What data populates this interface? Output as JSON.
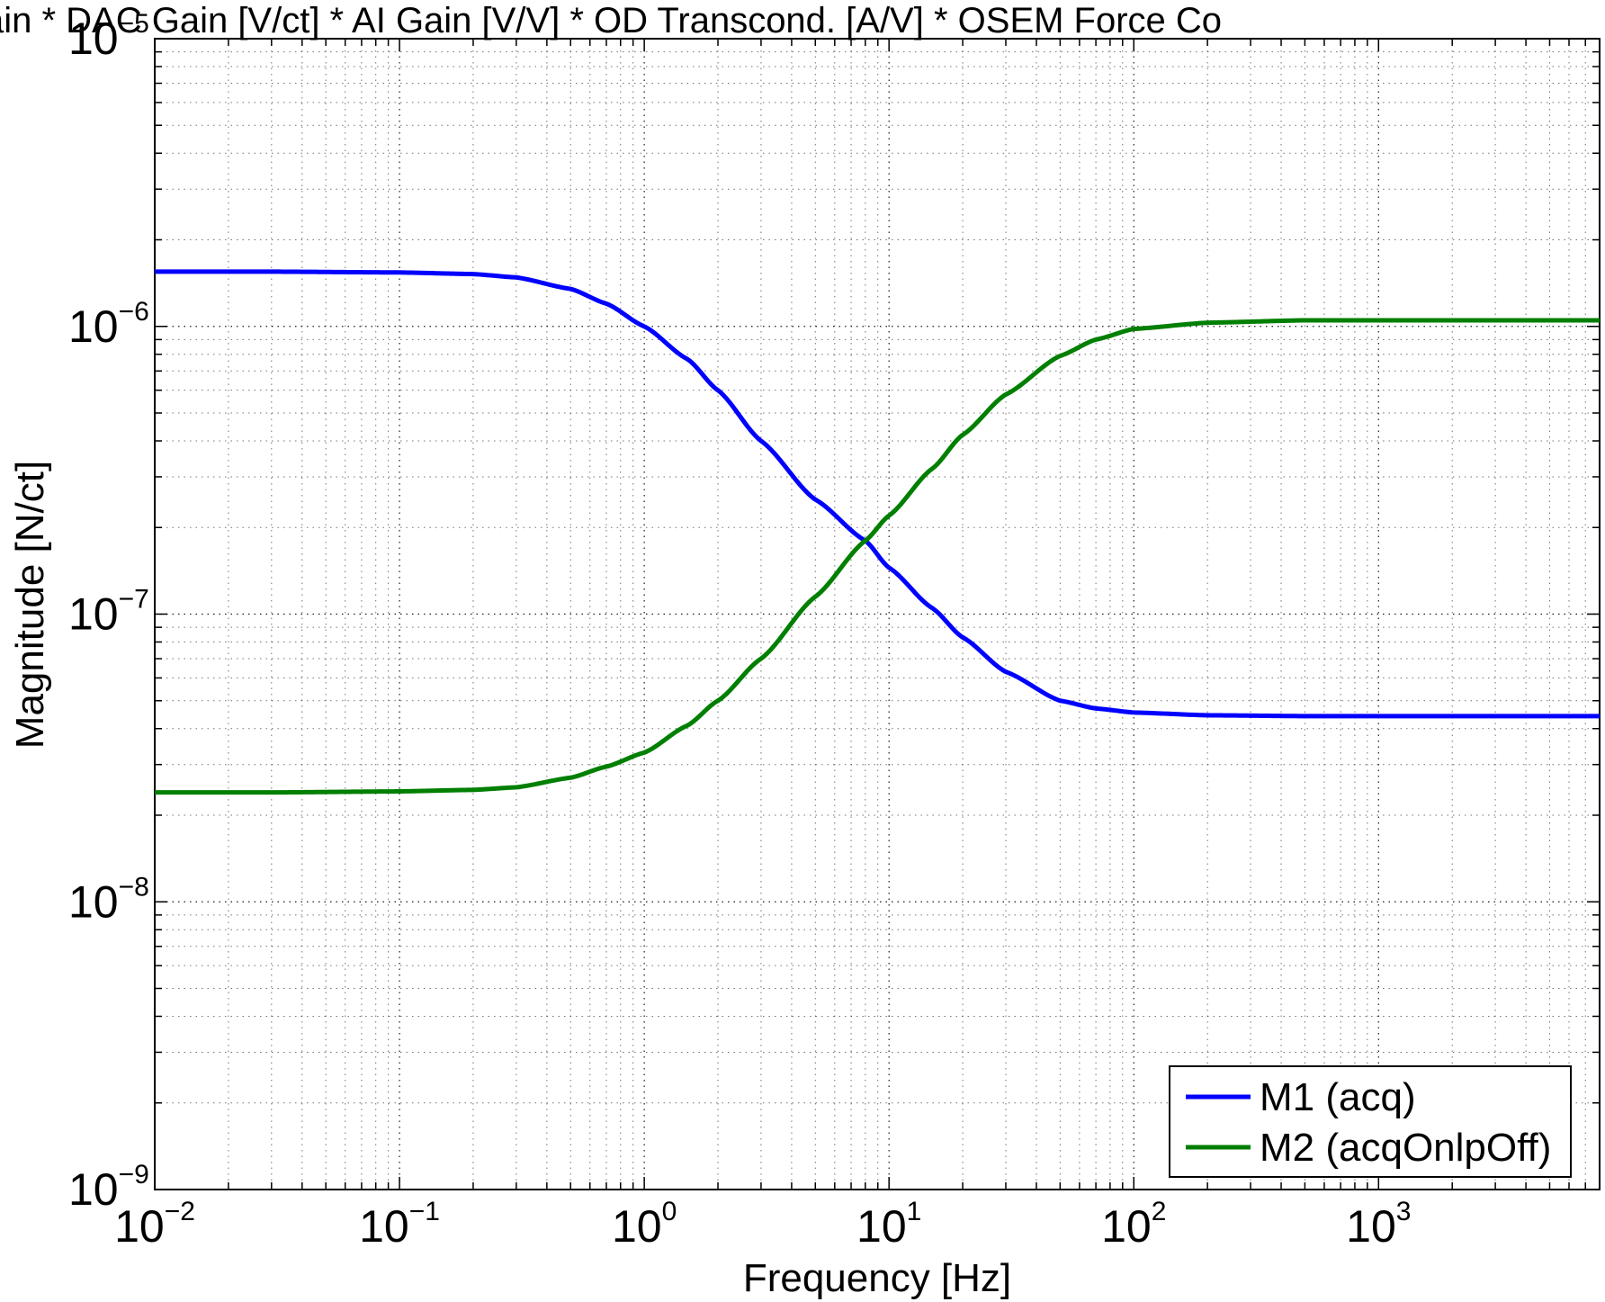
{
  "chart_data": {
    "type": "line",
    "title": "DC Gain * DAC Gain [V/ct] * AI Gain [V/V] * OD Transcond. [A/V] * OSEM Force Co",
    "xlabel": "Frequency [Hz]",
    "ylabel": "Magnitude [N/ct]",
    "x_scale": "log",
    "y_scale": "log",
    "xlim": [
      0.01,
      8000
    ],
    "ylim": [
      1e-09,
      1e-05
    ],
    "grid": true,
    "legend_position": "bottom-right",
    "x_ticks": [
      {
        "base": "10",
        "exp": "−2",
        "value": 0.01
      },
      {
        "base": "10",
        "exp": "−1",
        "value": 0.1
      },
      {
        "base": "10",
        "exp": "0",
        "value": 1
      },
      {
        "base": "10",
        "exp": "1",
        "value": 10
      },
      {
        "base": "10",
        "exp": "2",
        "value": 100
      },
      {
        "base": "10",
        "exp": "3",
        "value": 1000
      }
    ],
    "y_ticks": [
      {
        "base": "10",
        "exp": "−9",
        "value": 1e-09
      },
      {
        "base": "10",
        "exp": "−8",
        "value": 1e-08
      },
      {
        "base": "10",
        "exp": "−7",
        "value": 1e-07
      },
      {
        "base": "10",
        "exp": "−6",
        "value": 1e-06
      },
      {
        "base": "10",
        "exp": "−5",
        "value": 1e-05
      }
    ],
    "series": [
      {
        "name": "M1 (acq)",
        "color": "#0000ff",
        "x": [
          0.01,
          0.03,
          0.1,
          0.2,
          0.3,
          0.5,
          0.7,
          1,
          1.5,
          2,
          3,
          5,
          8,
          10,
          15,
          20,
          30,
          50,
          70,
          100,
          200,
          500,
          1000,
          8000
        ],
        "y": [
          1.55e-06,
          1.55e-06,
          1.54e-06,
          1.52e-06,
          1.48e-06,
          1.35e-06,
          1.2e-06,
          1e-06,
          7.7e-07,
          6e-07,
          4e-07,
          2.5e-07,
          1.8e-07,
          1.45e-07,
          1.05e-07,
          8.3e-08,
          6.3e-08,
          5e-08,
          4.7e-08,
          4.55e-08,
          4.45e-08,
          4.42e-08,
          4.42e-08,
          4.42e-08
        ]
      },
      {
        "name": "M2 (acqOnlpOff)",
        "color": "#007f00",
        "x": [
          0.01,
          0.03,
          0.1,
          0.2,
          0.3,
          0.5,
          0.7,
          1,
          1.5,
          2,
          3,
          5,
          8,
          10,
          15,
          20,
          30,
          50,
          70,
          100,
          200,
          500,
          1000,
          8000
        ],
        "y": [
          2.4e-08,
          2.4e-08,
          2.42e-08,
          2.45e-08,
          2.5e-08,
          2.7e-08,
          2.95e-08,
          3.3e-08,
          4.1e-08,
          5e-08,
          7e-08,
          1.15e-07,
          1.8e-07,
          2.2e-07,
          3.2e-07,
          4.2e-07,
          5.8e-07,
          7.9e-07,
          9e-07,
          9.8e-07,
          1.03e-06,
          1.05e-06,
          1.05e-06,
          1.05e-06
        ]
      }
    ]
  }
}
